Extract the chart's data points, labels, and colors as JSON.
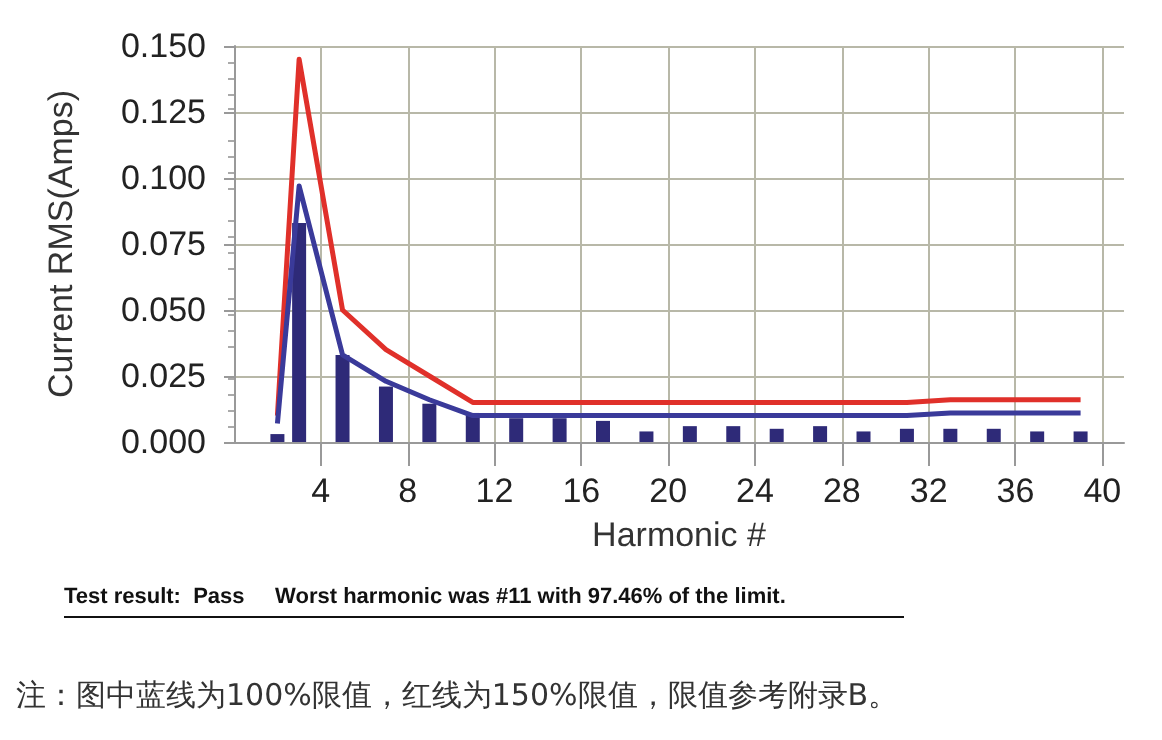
{
  "chart_data": {
    "type": "bar",
    "xlabel": "Harmonic #",
    "ylabel": "Current RMS(Amps)",
    "x": [
      2,
      3,
      5,
      7,
      9,
      11,
      13,
      15,
      17,
      19,
      21,
      23,
      25,
      27,
      29,
      31,
      33,
      35,
      37,
      39
    ],
    "series": [
      {
        "color": "#2e2a78",
        "values": [
          0.003,
          0.083,
          0.033,
          0.021,
          0.0145,
          0.011,
          0.009,
          0.009,
          0.008,
          0.004,
          0.006,
          0.006,
          0.005,
          0.006,
          0.004,
          0.005,
          0.005,
          0.005,
          0.004,
          0.004
        ]
      },
      {
        "type": "line",
        "color": "#e0302a",
        "values": [
          0.01,
          0.145,
          0.05,
          0.035,
          0.025,
          0.015,
          0.015,
          0.015,
          0.015,
          0.015,
          0.015,
          0.015,
          0.015,
          0.015,
          0.015,
          0.015,
          0.016,
          0.016,
          0.016,
          0.016
        ]
      },
      {
        "type": "line",
        "color": "#3a3a9a",
        "values": [
          0.007,
          0.097,
          0.033,
          0.023,
          0.016,
          0.01,
          0.01,
          0.01,
          0.01,
          0.01,
          0.01,
          0.01,
          0.01,
          0.01,
          0.01,
          0.01,
          0.011,
          0.011,
          0.011,
          0.011
        ]
      }
    ],
    "xlim": [
      0,
      41
    ],
    "xticks": [
      4,
      8,
      12,
      16,
      20,
      24,
      28,
      32,
      36,
      40
    ],
    "ylim": [
      0,
      0.15
    ],
    "yticks": [
      {
        "value": 0,
        "label": "0.000"
      },
      {
        "value": 0.025,
        "label": "0.025"
      },
      {
        "value": 0.05,
        "label": "0.050"
      },
      {
        "value": 0.075,
        "label": "0.075"
      },
      {
        "value": 0.1,
        "label": "0.100"
      },
      {
        "value": 0.125,
        "label": "0.125"
      },
      {
        "value": 0.15,
        "label": "0.150"
      }
    ],
    "grid": true,
    "marker": "none",
    "line_style": "solid",
    "annotations": [
      "Test result:  Pass     Worst harmonic was #11 with 97.46% of the limit.",
      "注：图中蓝线为100%限值，红线为150%限值，限值参考附录B。"
    ]
  }
}
